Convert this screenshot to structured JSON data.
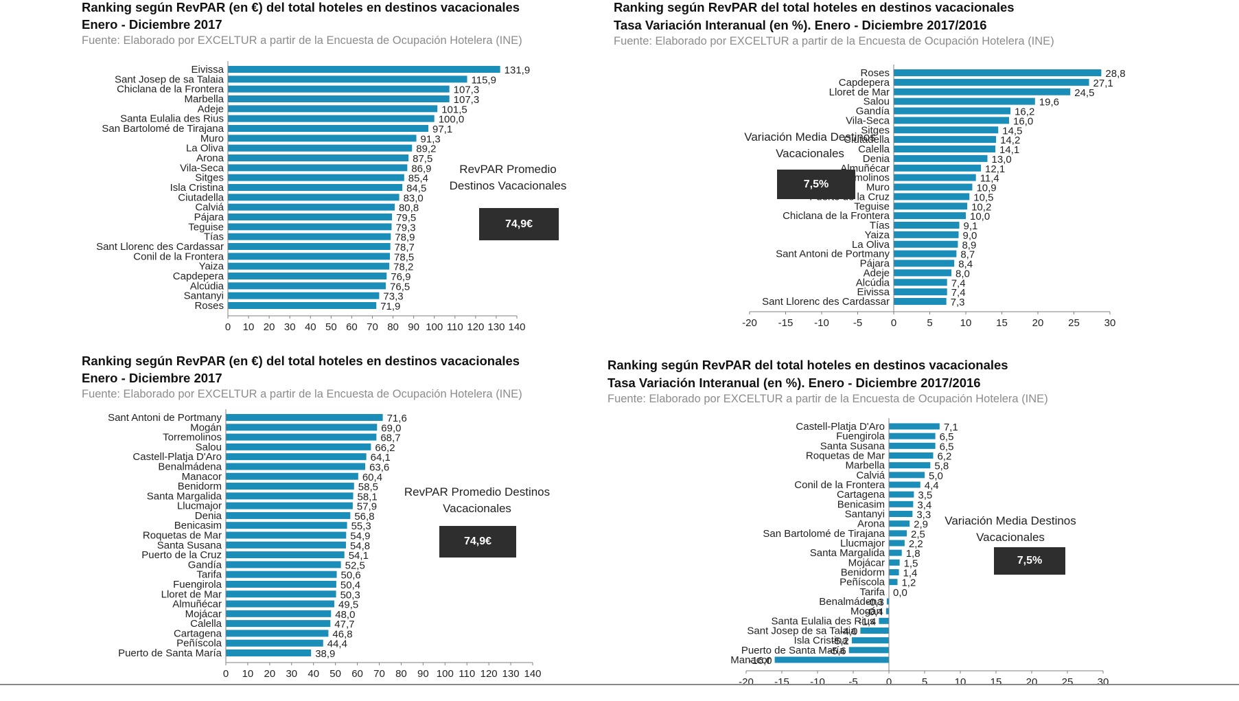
{
  "colors": {
    "bar": "#1a8db8",
    "axis": "#7f7f7f",
    "box": "#2e2e2e"
  },
  "panels": [
    {
      "title_line1": "Ranking según RevPAR (en €) del total hoteles en destinos vacacionales",
      "title_line2": "Enero - Diciembre 2017",
      "source": "Fuente: Elaborado por EXCELTUR a partir de la Encuesta de Ocupación Hotelera (INE)",
      "avg_label_line1": "RevPAR Promedio",
      "avg_label_line2": "Destinos Vacacionales",
      "avg_value": "74,9€"
    },
    {
      "title_line1": "Ranking según RevPAR del total hoteles en destinos vacacionales",
      "title_line2": "Tasa Variación Interanual (en %). Enero - Diciembre 2017/2016",
      "source": "Fuente: Elaborado por EXCELTUR a partir de la Encuesta de Ocupación Hotelera (INE)",
      "avg_label_line1": "Variación Media Destinos",
      "avg_label_line2": "Vacacionales",
      "avg_value": "7,5%"
    },
    {
      "title_line1": "Ranking según RevPAR (en €) del total hoteles en destinos vacacionales",
      "title_line2": "Enero - Diciembre 2017",
      "source": "Fuente: Elaborado por EXCELTUR a partir de la Encuesta de Ocupación Hotelera (INE)",
      "avg_label_line1": "RevPAR Promedio Destinos",
      "avg_label_line2": "Vacacionales",
      "avg_value": "74,9€"
    },
    {
      "title_line1": "Ranking según RevPAR del total hoteles en destinos vacacionales",
      "title_line2": "Tasa Variación Interanual (en %). Enero - Diciembre 2017/2016",
      "source": "Fuente: Elaborado por EXCELTUR a partir de la Encuesta de Ocupación Hotelera (INE)",
      "avg_label_line1": "Variación Media Destinos",
      "avg_label_line2": "Vacacionales",
      "avg_value": "7,5%"
    }
  ],
  "chart_data": [
    {
      "type": "bar",
      "orientation": "horizontal",
      "xlim": [
        0,
        140
      ],
      "xticks": [
        0,
        10,
        20,
        30,
        40,
        50,
        60,
        70,
        80,
        90,
        100,
        110,
        120,
        130,
        140
      ],
      "categories": [
        "Eivissa",
        "Sant Josep de sa Talaia",
        "Chiclana de la Frontera",
        "Marbella",
        "Adeje",
        "Santa Eulalia des Rius",
        "San Bartolomé de Tirajana",
        "Muro",
        "La Oliva",
        "Arona",
        "Vila-Seca",
        "Sitges",
        "Isla Cristina",
        "Ciutadella",
        "Calviá",
        "Pájara",
        "Teguise",
        "Tías",
        "Sant Llorenc des Cardassar",
        "Conil de la Frontera",
        "Yaiza",
        "Capdepera",
        "Alcúdia",
        "Santanyi",
        "Roses"
      ],
      "values": [
        131.9,
        115.9,
        107.3,
        107.3,
        101.5,
        100.0,
        97.1,
        91.3,
        89.2,
        87.5,
        86.9,
        85.4,
        84.5,
        83.0,
        80.8,
        79.5,
        79.3,
        78.9,
        78.7,
        78.5,
        78.2,
        76.9,
        76.5,
        73.3,
        71.9
      ],
      "value_labels": [
        "131,9",
        "115,9",
        "107,3",
        "107,3",
        "101,5",
        "100,0",
        "97,1",
        "91,3",
        "89,2",
        "87,5",
        "86,9",
        "85,4",
        "84,5",
        "83,0",
        "80,8",
        "79,5",
        "79,3",
        "78,9",
        "78,7",
        "78,5",
        "78,2",
        "76,9",
        "76,5",
        "73,3",
        "71,9"
      ]
    },
    {
      "type": "bar",
      "orientation": "horizontal",
      "xlim": [
        -20,
        30
      ],
      "xticks": [
        -20,
        -15,
        -10,
        -5,
        0,
        5,
        10,
        15,
        20,
        25,
        30
      ],
      "categories": [
        "Roses",
        "Capdepera",
        "Lloret de Mar",
        "Salou",
        "Gandía",
        "Vila-Seca",
        "Sitges",
        "Ciutadella",
        "Calella",
        "Denia",
        "Almuñécar",
        "Torremolinos",
        "Muro",
        "Puerto de la Cruz",
        "Teguise",
        "Chiclana de la Frontera",
        "Tías",
        "Yaiza",
        "La Oliva",
        "Sant Antoni de Portmany",
        "Pájara",
        "Adeje",
        "Alcúdia",
        "Eivissa",
        "Sant Llorenc des Cardassar"
      ],
      "values": [
        28.8,
        27.1,
        24.5,
        19.6,
        16.2,
        16.0,
        14.5,
        14.2,
        14.1,
        13.0,
        12.1,
        11.4,
        10.9,
        10.5,
        10.2,
        10.0,
        9.1,
        9.0,
        8.9,
        8.7,
        8.4,
        8.0,
        7.4,
        7.4,
        7.3
      ],
      "value_labels": [
        "28,8",
        "27,1",
        "24,5",
        "19,6",
        "16,2",
        "16,0",
        "14,5",
        "14,2",
        "14,1",
        "13,0",
        "12,1",
        "11,4",
        "10,9",
        "10,5",
        "10,2",
        "10,0",
        "9,1",
        "9,0",
        "8,9",
        "8,7",
        "8,4",
        "8,0",
        "7,4",
        "7,4",
        "7,3"
      ]
    },
    {
      "type": "bar",
      "orientation": "horizontal",
      "xlim": [
        0,
        140
      ],
      "xticks": [
        0,
        10,
        20,
        30,
        40,
        50,
        60,
        70,
        80,
        90,
        100,
        110,
        120,
        130,
        140
      ],
      "categories": [
        "Sant Antoni de Portmany",
        "Mogán",
        "Torremolinos",
        "Salou",
        "Castell-Platja D'Aro",
        "Benalmádena",
        "Manacor",
        "Benidorm",
        "Santa Margalida",
        "Llucmajor",
        "Denia",
        "Benicasim",
        "Roquetas de Mar",
        "Santa Susana",
        "Puerto de la Cruz",
        "Gandía",
        "Tarifa",
        "Fuengirola",
        "Lloret de Mar",
        "Almuñécar",
        "Mojácar",
        "Calella",
        "Cartagena",
        "Peñíscola",
        "Puerto de Santa María"
      ],
      "values": [
        71.6,
        69.0,
        68.7,
        66.2,
        64.1,
        63.6,
        60.4,
        58.5,
        58.1,
        57.9,
        56.8,
        55.3,
        54.9,
        54.8,
        54.1,
        52.5,
        50.6,
        50.4,
        50.3,
        49.5,
        48.0,
        47.7,
        46.8,
        44.4,
        38.9
      ],
      "value_labels": [
        "71,6",
        "69,0",
        "68,7",
        "66,2",
        "64,1",
        "63,6",
        "60,4",
        "58,5",
        "58,1",
        "57,9",
        "56,8",
        "55,3",
        "54,9",
        "54,8",
        "54,1",
        "52,5",
        "50,6",
        "50,4",
        "50,3",
        "49,5",
        "48,0",
        "47,7",
        "46,8",
        "44,4",
        "38,9"
      ]
    },
    {
      "type": "bar",
      "orientation": "horizontal",
      "xlim": [
        -20,
        30
      ],
      "xticks": [
        -20,
        -15,
        -10,
        -5,
        0,
        5,
        10,
        15,
        20,
        25,
        30
      ],
      "categories": [
        "Castell-Platja D'Aro",
        "Fuengirola",
        "Santa Susana",
        "Roquetas de Mar",
        "Marbella",
        "Calviá",
        "Conil de la Frontera",
        "Cartagena",
        "Benicasim",
        "Santanyi",
        "Arona",
        "San Bartolomé de Tirajana",
        "Llucmajor",
        "Santa Margalida",
        "Mojácar",
        "Benidorm",
        "Peñíscola",
        "Tarifa",
        "Benalmádena",
        "Mogán",
        "Santa Eulalia des Rius",
        "Sant Josep de sa Talaia",
        "Isla Cristina",
        "Puerto de Santa María",
        "Manacor"
      ],
      "values": [
        7.1,
        6.5,
        6.5,
        6.2,
        5.8,
        5.0,
        4.4,
        3.5,
        3.4,
        3.3,
        2.9,
        2.5,
        2.2,
        1.8,
        1.5,
        1.4,
        1.2,
        0.0,
        -0.3,
        -0.4,
        -1.4,
        -4.0,
        -5.2,
        -5.6,
        -16.0
      ],
      "value_labels": [
        "7,1",
        "6,5",
        "6,5",
        "6,2",
        "5,8",
        "5,0",
        "4,4",
        "3,5",
        "3,4",
        "3,3",
        "2,9",
        "2,5",
        "2,2",
        "1,8",
        "1,5",
        "1,4",
        "1,2",
        "0,0",
        "-0,3",
        "-0,4",
        "-1,4",
        "-4,0",
        "-5,2",
        "-5,6",
        "-16,0"
      ]
    }
  ]
}
